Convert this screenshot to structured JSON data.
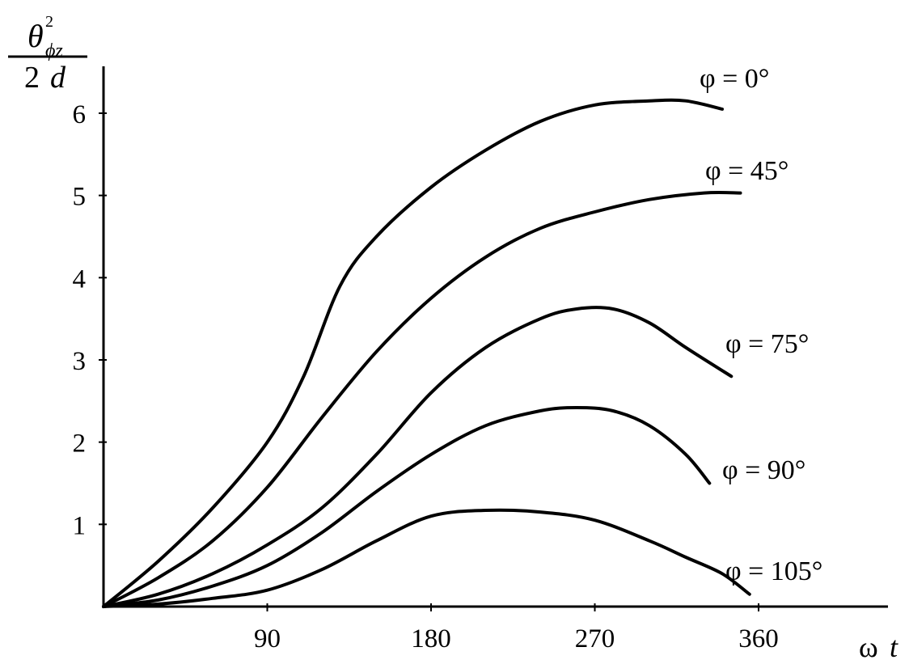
{
  "chart_data": {
    "type": "line",
    "xlabel": {
      "symbol": "ω",
      "var": "t"
    },
    "ylabel": {
      "num_base": "θ",
      "num_sup": "2",
      "num_sub": "ϕz",
      "den_num": "2",
      "den_var": "d"
    },
    "xlim": [
      0,
      420
    ],
    "ylim": [
      0,
      6.6
    ],
    "xticks": [
      90,
      180,
      270,
      360
    ],
    "yticks": [
      1,
      2,
      3,
      4,
      5,
      6
    ],
    "grid": false,
    "legend": "none",
    "series": [
      {
        "label": "φ = 0°",
        "x": [
          0,
          30,
          60,
          90,
          110,
          130,
          150,
          180,
          210,
          240,
          270,
          300,
          320,
          340
        ],
        "y": [
          0,
          0.55,
          1.2,
          2.0,
          2.8,
          3.9,
          4.5,
          5.1,
          5.55,
          5.9,
          6.1,
          6.15,
          6.15,
          6.05
        ]
      },
      {
        "label": "φ = 45°",
        "x": [
          0,
          30,
          60,
          90,
          120,
          150,
          180,
          210,
          240,
          270,
          300,
          330,
          350
        ],
        "y": [
          0,
          0.35,
          0.8,
          1.45,
          2.3,
          3.1,
          3.75,
          4.25,
          4.6,
          4.8,
          4.95,
          5.03,
          5.03
        ]
      },
      {
        "label": "φ = 75°",
        "x": [
          0,
          30,
          60,
          90,
          120,
          150,
          180,
          210,
          240,
          260,
          280,
          300,
          320,
          345
        ],
        "y": [
          0,
          0.15,
          0.4,
          0.75,
          1.2,
          1.85,
          2.6,
          3.15,
          3.5,
          3.62,
          3.62,
          3.45,
          3.15,
          2.8
        ]
      },
      {
        "label": "φ = 90°",
        "x": [
          0,
          30,
          60,
          90,
          120,
          150,
          180,
          210,
          240,
          260,
          280,
          300,
          320,
          333
        ],
        "y": [
          0,
          0.08,
          0.25,
          0.5,
          0.9,
          1.4,
          1.85,
          2.2,
          2.38,
          2.42,
          2.38,
          2.2,
          1.85,
          1.5
        ]
      },
      {
        "label": "φ = 105°",
        "x": [
          0,
          30,
          60,
          90,
          120,
          150,
          180,
          210,
          240,
          270,
          300,
          320,
          340,
          355
        ],
        "y": [
          0,
          0.03,
          0.1,
          0.2,
          0.45,
          0.8,
          1.1,
          1.17,
          1.15,
          1.05,
          0.8,
          0.6,
          0.4,
          0.15
        ]
      }
    ]
  }
}
